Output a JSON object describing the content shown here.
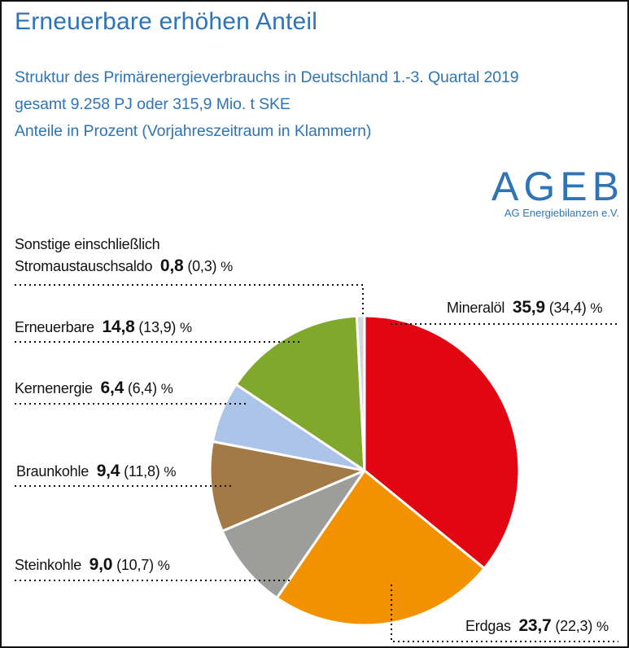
{
  "header": {
    "title": "Erneuerbare erhöhen Anteil",
    "subtitle_line1": "Struktur des Primärenergieverbrauchs in Deutschland 1.-3. Quartal 2019",
    "subtitle_line2": "gesamt 9.258 PJ oder 315,9 Mio. t SKE",
    "subtitle_line3": "Anteile in Prozent (Vorjahreszeitraum in Klammern)"
  },
  "logo": {
    "name": "AGEB",
    "tagline": "AG Energiebilanzen e.V."
  },
  "chart_data": {
    "type": "pie",
    "title": "Struktur des Primärenergieverbrauchs in Deutschland 1.-3. Quartal 2019",
    "unit": "%",
    "start": "12 o'clock, clockwise",
    "slices": [
      {
        "label": "Mineralöl",
        "value": 35.9,
        "value_text": "35,9",
        "prev_text": "(34,4)",
        "unit": "%",
        "color": "#e20613"
      },
      {
        "label": "Erdgas",
        "value": 23.7,
        "value_text": "23,7",
        "prev_text": "(22,3)",
        "unit": "%",
        "color": "#f39200"
      },
      {
        "label": "Steinkohle",
        "value": 9.0,
        "value_text": "9,0",
        "prev_text": "(10,7)",
        "unit": "%",
        "color": "#9d9d9c"
      },
      {
        "label": "Braunkohle",
        "value": 9.4,
        "value_text": "9,4",
        "prev_text": "(11,8)",
        "unit": "%",
        "color": "#a37a45"
      },
      {
        "label": "Kernenergie",
        "value": 6.4,
        "value_text": "6,4",
        "prev_text": "(6,4)",
        "unit": "%",
        "color": "#abc4e8"
      },
      {
        "label": "Erneuerbare",
        "value": 14.8,
        "value_text": "14,8",
        "prev_text": "(13,9)",
        "unit": "%",
        "color": "#7fa82c"
      },
      {
        "label_line1": "Sonstige einschließlich",
        "label": "Stromaustauschsaldo",
        "value": 0.8,
        "value_text": "0,8",
        "prev_text": "(0,3)",
        "unit": "%",
        "color": "#d3d6dc"
      }
    ]
  }
}
